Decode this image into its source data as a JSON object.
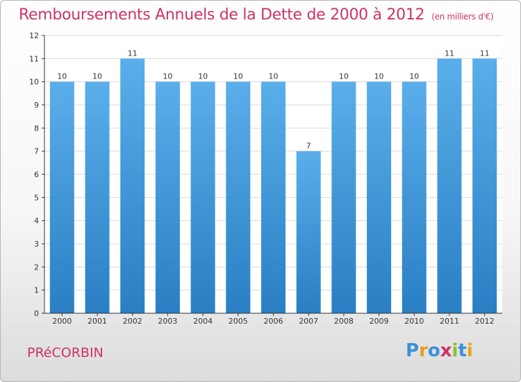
{
  "header": {
    "title": "Remboursements Annuels de la Dette de 2000 à 2012",
    "subtitle": "(en milliers d'€)"
  },
  "footer": {
    "town": "PRéCORBIN",
    "logo_text": "Proxiti"
  },
  "colors": {
    "title": "#cc3366",
    "bar_top": "#5aaeea",
    "bar_bottom": "#2a7fc4",
    "grid": "#d8d8d8",
    "axis": "#333333"
  },
  "chart_data": {
    "type": "bar",
    "categories": [
      "2000",
      "2001",
      "2002",
      "2003",
      "2004",
      "2005",
      "2006",
      "2007",
      "2008",
      "2009",
      "2010",
      "2011",
      "2012"
    ],
    "values": [
      10,
      10,
      11,
      10,
      10,
      10,
      10,
      7,
      10,
      10,
      10,
      11,
      11
    ],
    "yticks": [
      0,
      1,
      2,
      3,
      4,
      5,
      6,
      7,
      8,
      9,
      10,
      11,
      12
    ],
    "ylim": [
      0,
      12
    ],
    "grid": true,
    "legend": "none"
  }
}
